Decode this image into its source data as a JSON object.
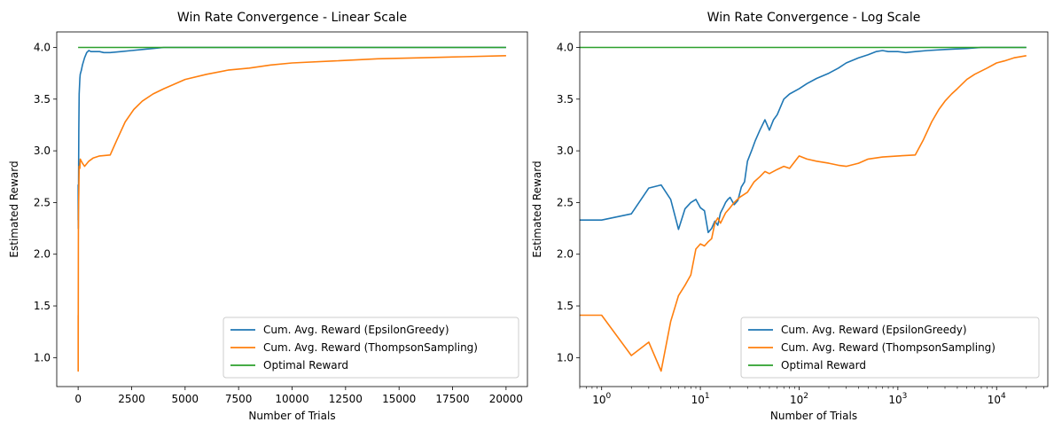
{
  "chart_data": [
    {
      "type": "line",
      "title": "Win Rate Convergence - Linear Scale",
      "xlabel": "Number of Trials",
      "ylabel": "Estimated Reward",
      "xscale": "linear",
      "xlim": [
        -1000,
        21000
      ],
      "ylim": [
        0.72,
        4.15
      ],
      "xticks": [
        0,
        2500,
        5000,
        7500,
        10000,
        12500,
        15000,
        17500,
        20000
      ],
      "xtick_labels": [
        "0",
        "2500",
        "5000",
        "7500",
        "10000",
        "12500",
        "15000",
        "17500",
        "20000"
      ],
      "yticks": [
        1.0,
        1.5,
        2.0,
        2.5,
        3.0,
        3.5,
        4.0
      ],
      "ytick_labels": [
        "1.0",
        "1.5",
        "2.0",
        "2.5",
        "3.0",
        "3.5",
        "4.0"
      ],
      "legend_position": "lower-right",
      "grid": false,
      "series": [
        {
          "name": "Cum. Avg. Reward (EpsilonGreedy)",
          "color": "#1f77b4",
          "x": [
            1,
            4,
            8,
            15,
            30,
            50,
            80,
            100,
            150,
            200,
            300,
            400,
            500,
            600,
            800,
            1000,
            1200,
            1500,
            2000,
            2500,
            3000,
            3500,
            4000,
            5000,
            6000,
            7000,
            8000,
            10000,
            12000,
            15000,
            18000,
            20000
          ],
          "y": [
            2.33,
            2.67,
            2.25,
            2.5,
            3.2,
            3.55,
            3.7,
            3.74,
            3.78,
            3.83,
            3.9,
            3.95,
            3.97,
            3.96,
            3.96,
            3.96,
            3.95,
            3.95,
            3.96,
            3.97,
            3.98,
            3.99,
            4.0,
            4.0,
            4.0,
            4.0,
            4.0,
            4.0,
            4.0,
            4.0,
            4.0,
            4.0
          ]
        },
        {
          "name": "Cum. Avg. Reward (ThompsonSampling)",
          "color": "#ff7f0e",
          "x": [
            1,
            4,
            10,
            15,
            30,
            50,
            80,
            100,
            200,
            300,
            500,
            700,
            1000,
            1500,
            1800,
            2200,
            2600,
            3000,
            3500,
            4000,
            5000,
            6000,
            7000,
            8000,
            9000,
            10000,
            12000,
            14000,
            16000,
            18000,
            20000
          ],
          "y": [
            1.41,
            0.87,
            2.1,
            2.4,
            2.6,
            2.85,
            2.83,
            2.92,
            2.88,
            2.85,
            2.9,
            2.93,
            2.95,
            2.96,
            3.1,
            3.28,
            3.4,
            3.48,
            3.55,
            3.6,
            3.69,
            3.74,
            3.78,
            3.8,
            3.83,
            3.85,
            3.87,
            3.89,
            3.9,
            3.91,
            3.92
          ]
        },
        {
          "name": "Optimal Reward",
          "color": "#2ca02c",
          "x": [
            0,
            20000
          ],
          "y": [
            4.0,
            4.0
          ]
        }
      ]
    },
    {
      "type": "line",
      "title": "Win Rate Convergence - Log Scale",
      "xlabel": "Number of Trials",
      "ylabel": "Estimated Reward",
      "xscale": "log",
      "xlim": [
        0.6,
        33000
      ],
      "ylim": [
        0.72,
        4.15
      ],
      "xticks": [
        1,
        10,
        100,
        1000,
        10000
      ],
      "xtick_labels": [
        [
          "10",
          "0"
        ],
        [
          "10",
          "1"
        ],
        [
          "10",
          "2"
        ],
        [
          "10",
          "3"
        ],
        [
          "10",
          "4"
        ]
      ],
      "yticks": [
        1.0,
        1.5,
        2.0,
        2.5,
        3.0,
        3.5,
        4.0
      ],
      "ytick_labels": [
        "1.0",
        "1.5",
        "2.0",
        "2.5",
        "3.0",
        "3.5",
        "4.0"
      ],
      "legend_position": "lower-right",
      "grid": false,
      "series": [
        {
          "name": "Cum. Avg. Reward (EpsilonGreedy)",
          "color": "#1f77b4",
          "x": [
            0.6,
            1,
            2,
            3,
            4,
            5,
            6,
            7,
            8,
            9,
            10,
            11,
            12,
            13,
            14,
            15,
            16,
            17,
            18,
            19,
            20,
            22,
            24,
            26,
            28,
            30,
            33,
            36,
            40,
            45,
            50,
            55,
            60,
            70,
            80,
            100,
            120,
            150,
            200,
            250,
            300,
            400,
            500,
            600,
            700,
            800,
            1000,
            1200,
            1500,
            2000,
            3000,
            5000,
            7000,
            10000,
            15000,
            20000
          ],
          "y": [
            2.33,
            2.33,
            2.39,
            2.64,
            2.67,
            2.53,
            2.24,
            2.44,
            2.5,
            2.53,
            2.45,
            2.42,
            2.21,
            2.25,
            2.32,
            2.28,
            2.4,
            2.45,
            2.5,
            2.53,
            2.55,
            2.48,
            2.52,
            2.65,
            2.7,
            2.9,
            3.0,
            3.1,
            3.2,
            3.3,
            3.2,
            3.3,
            3.35,
            3.5,
            3.55,
            3.6,
            3.65,
            3.7,
            3.75,
            3.8,
            3.85,
            3.9,
            3.93,
            3.96,
            3.97,
            3.96,
            3.96,
            3.95,
            3.96,
            3.97,
            3.98,
            3.99,
            4.0,
            4.0,
            4.0,
            4.0
          ]
        },
        {
          "name": "Cum. Avg. Reward (ThompsonSampling)",
          "color": "#ff7f0e",
          "x": [
            0.6,
            1,
            2,
            3,
            4,
            5,
            6,
            7,
            8,
            9,
            10,
            11,
            12,
            13,
            14,
            15,
            16,
            18,
            20,
            22,
            25,
            30,
            35,
            40,
            45,
            50,
            60,
            70,
            80,
            100,
            120,
            150,
            200,
            250,
            300,
            400,
            500,
            700,
            1000,
            1500,
            1800,
            2200,
            2600,
            3000,
            3500,
            4000,
            5000,
            6000,
            8000,
            10000,
            12000,
            15000,
            20000
          ],
          "y": [
            1.41,
            1.41,
            1.02,
            1.15,
            0.87,
            1.35,
            1.6,
            1.7,
            1.8,
            2.05,
            2.1,
            2.08,
            2.12,
            2.15,
            2.3,
            2.35,
            2.3,
            2.4,
            2.45,
            2.5,
            2.55,
            2.6,
            2.7,
            2.75,
            2.8,
            2.78,
            2.82,
            2.85,
            2.83,
            2.95,
            2.92,
            2.9,
            2.88,
            2.86,
            2.85,
            2.88,
            2.92,
            2.94,
            2.95,
            2.96,
            3.1,
            3.28,
            3.4,
            3.48,
            3.55,
            3.6,
            3.69,
            3.74,
            3.8,
            3.85,
            3.87,
            3.9,
            3.92
          ]
        },
        {
          "name": "Optimal Reward",
          "color": "#2ca02c",
          "x": [
            0.6,
            20000
          ],
          "y": [
            4.0,
            4.0
          ]
        }
      ]
    }
  ]
}
